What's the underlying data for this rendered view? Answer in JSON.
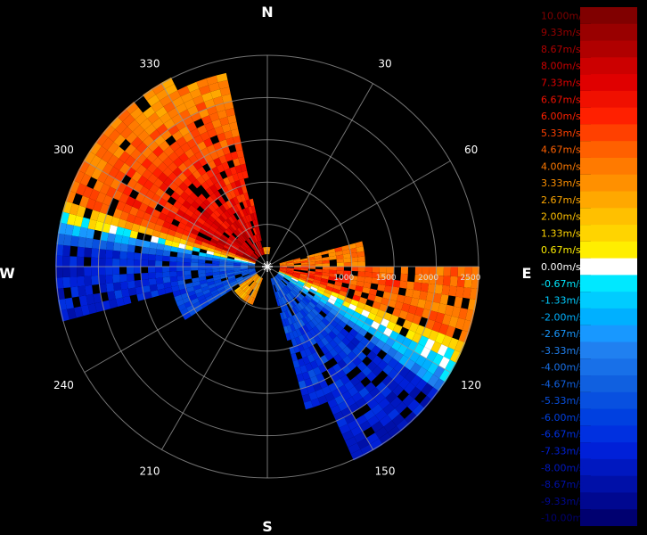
{
  "compass": {
    "north": "N",
    "east": "E",
    "south": "S",
    "west": "W"
  },
  "azimuth_labels": [
    {
      "deg": 30,
      "label": "30"
    },
    {
      "deg": 60,
      "label": "60"
    },
    {
      "deg": 120,
      "label": "120"
    },
    {
      "deg": 150,
      "label": "150"
    },
    {
      "deg": 210,
      "label": "210"
    },
    {
      "deg": 240,
      "label": "240"
    },
    {
      "deg": 300,
      "label": "300"
    },
    {
      "deg": 330,
      "label": "330"
    }
  ],
  "range_labels": [
    "1000",
    "1500",
    "2000",
    "2500"
  ],
  "colorbar": [
    {
      "label": "10.00m/s",
      "color": "#800000"
    },
    {
      "label": "9.33m/s",
      "color": "#990000"
    },
    {
      "label": "8.67m/s",
      "color": "#b00000"
    },
    {
      "label": "8.00m/s",
      "color": "#cc0000"
    },
    {
      "label": "7.33m/s",
      "color": "#e00000"
    },
    {
      "label": "6.67m/s",
      "color": "#f01000"
    },
    {
      "label": "6.00m/s",
      "color": "#ff2000"
    },
    {
      "label": "5.33m/s",
      "color": "#ff4000"
    },
    {
      "label": "4.67m/s",
      "color": "#ff6000"
    },
    {
      "label": "4.00m/s",
      "color": "#ff7a00"
    },
    {
      "label": "3.33m/s",
      "color": "#ff9000"
    },
    {
      "label": "2.67m/s",
      "color": "#ffa800"
    },
    {
      "label": "2.00m/s",
      "color": "#ffc000"
    },
    {
      "label": "1.33m/s",
      "color": "#ffd400"
    },
    {
      "label": "0.67m/s",
      "color": "#ffee00"
    },
    {
      "label": "0.00m/s",
      "color": "#ffffff"
    },
    {
      "label": "-0.67m/s",
      "color": "#00e8ff"
    },
    {
      "label": "-1.33m/s",
      "color": "#00ccff"
    },
    {
      "label": "-2.00m/s",
      "color": "#00b0ff"
    },
    {
      "label": "-2.67m/s",
      "color": "#1898ff"
    },
    {
      "label": "-3.33m/s",
      "color": "#2080f0"
    },
    {
      "label": "-4.00m/s",
      "color": "#1870e8"
    },
    {
      "label": "-4.67m/s",
      "color": "#1060e0"
    },
    {
      "label": "-5.33m/s",
      "color": "#0850e0"
    },
    {
      "label": "-6.00m/s",
      "color": "#0040e0"
    },
    {
      "label": "-6.67m/s",
      "color": "#0030e0"
    },
    {
      "label": "-7.33m/s",
      "color": "#0020d8"
    },
    {
      "label": "-8.00m/s",
      "color": "#0018c0"
    },
    {
      "label": "-8.67m/s",
      "color": "#0010a8"
    },
    {
      "label": "-9.33m/s",
      "color": "#000890"
    },
    {
      "label": "-10.00m/s",
      "color": "#000070"
    }
  ]
}
